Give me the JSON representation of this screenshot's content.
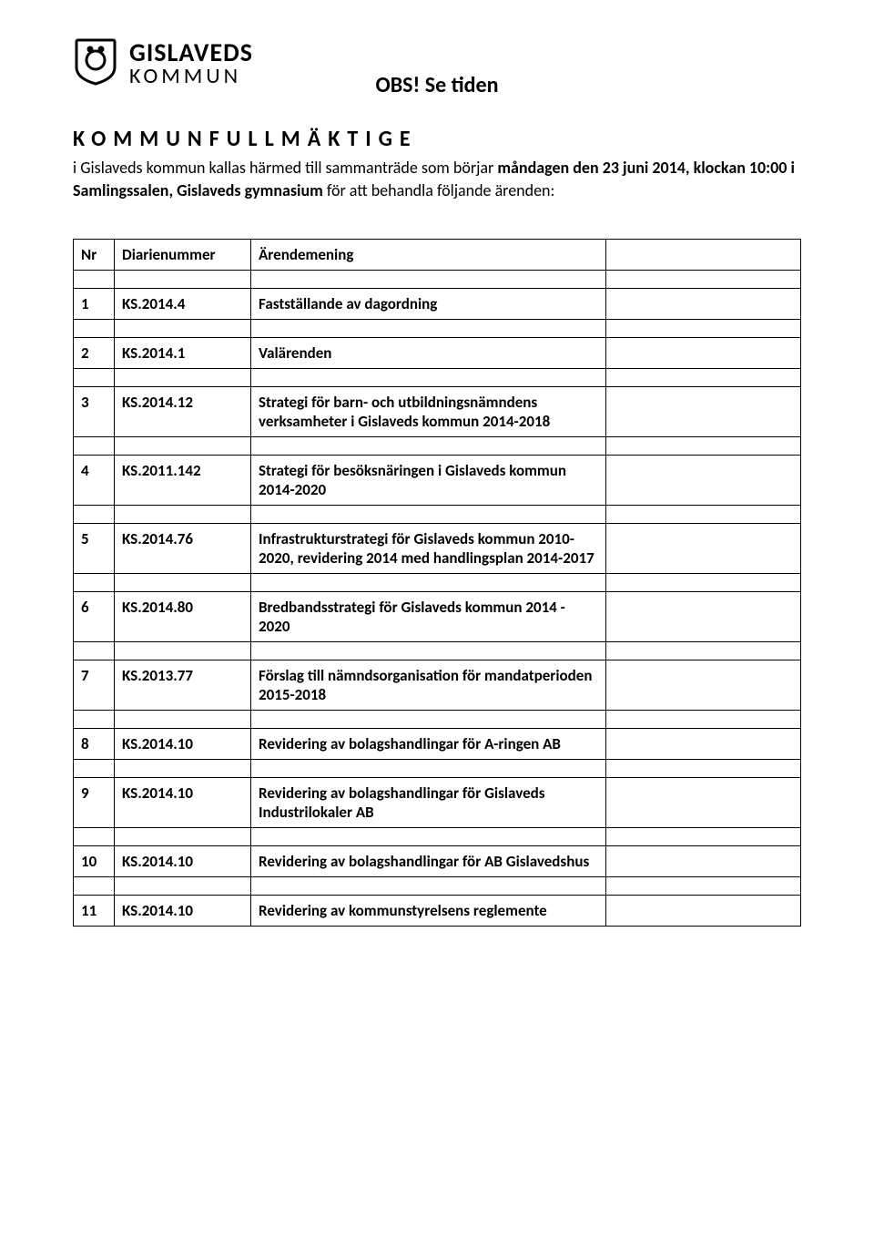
{
  "logo": {
    "main": "GISLAVEDS",
    "sub": "KOMMUN"
  },
  "notice": "OBS! Se tiden",
  "heading": "KOMMUNFULLMÄKTIGE",
  "intro": {
    "prefix": "i Gislaveds kommun kallas härmed till sammanträde som börjar ",
    "bold": "måndagen den 23 juni 2014, klockan 10:00 i Samlingssalen, Gislaveds gymnasium",
    "suffix": " för att behandla följande ärenden:"
  },
  "table": {
    "headers": {
      "nr": "Nr",
      "diarie": "Diarienummer",
      "arende": "Ärendemening"
    },
    "rows": [
      {
        "nr": "1",
        "diarie": "KS.2014.4",
        "arende": "Fastställande av dagordning"
      },
      {
        "nr": "2",
        "diarie": "KS.2014.1",
        "arende": "Valärenden"
      },
      {
        "nr": "3",
        "diarie": "KS.2014.12",
        "arende": "Strategi för barn- och utbildningsnämndens verksamheter i Gislaveds kommun 2014-2018"
      },
      {
        "nr": "4",
        "diarie": "KS.2011.142",
        "arende": "Strategi för besöksnäringen i Gislaveds kommun 2014-2020"
      },
      {
        "nr": "5",
        "diarie": "KS.2014.76",
        "arende": "Infrastrukturstrategi för Gislaveds kommun 2010-2020, revidering 2014 med handlingsplan 2014-2017"
      },
      {
        "nr": "6",
        "diarie": "KS.2014.80",
        "arende": "Bredbandsstrategi för Gislaveds kommun 2014 - 2020"
      },
      {
        "nr": "7",
        "diarie": "KS.2013.77",
        "arende": "Förslag till nämndsorganisation för mandatperioden 2015-2018"
      },
      {
        "nr": "8",
        "diarie": "KS.2014.10",
        "arende": "Revidering av bolagshandlingar för A-ringen AB"
      },
      {
        "nr": "9",
        "diarie": "KS.2014.10",
        "arende": "Revidering av bolagshandlingar för Gislaveds Industrilokaler AB"
      },
      {
        "nr": "10",
        "diarie": "KS.2014.10",
        "arende": "Revidering av bolagshandlingar för AB Gislavedshus"
      },
      {
        "nr": "11",
        "diarie": "KS.2014.10",
        "arende": "Revidering av kommunstyrelsens reglemente"
      }
    ]
  },
  "colors": {
    "text": "#000000",
    "background": "#ffffff",
    "border": "#000000"
  },
  "typography": {
    "body_fontsize": 17,
    "heading_fontsize": 24,
    "heading_letter_spacing": 8,
    "notice_fontsize": 24,
    "logo_main_fontsize": 28,
    "logo_sub_fontsize": 24
  }
}
